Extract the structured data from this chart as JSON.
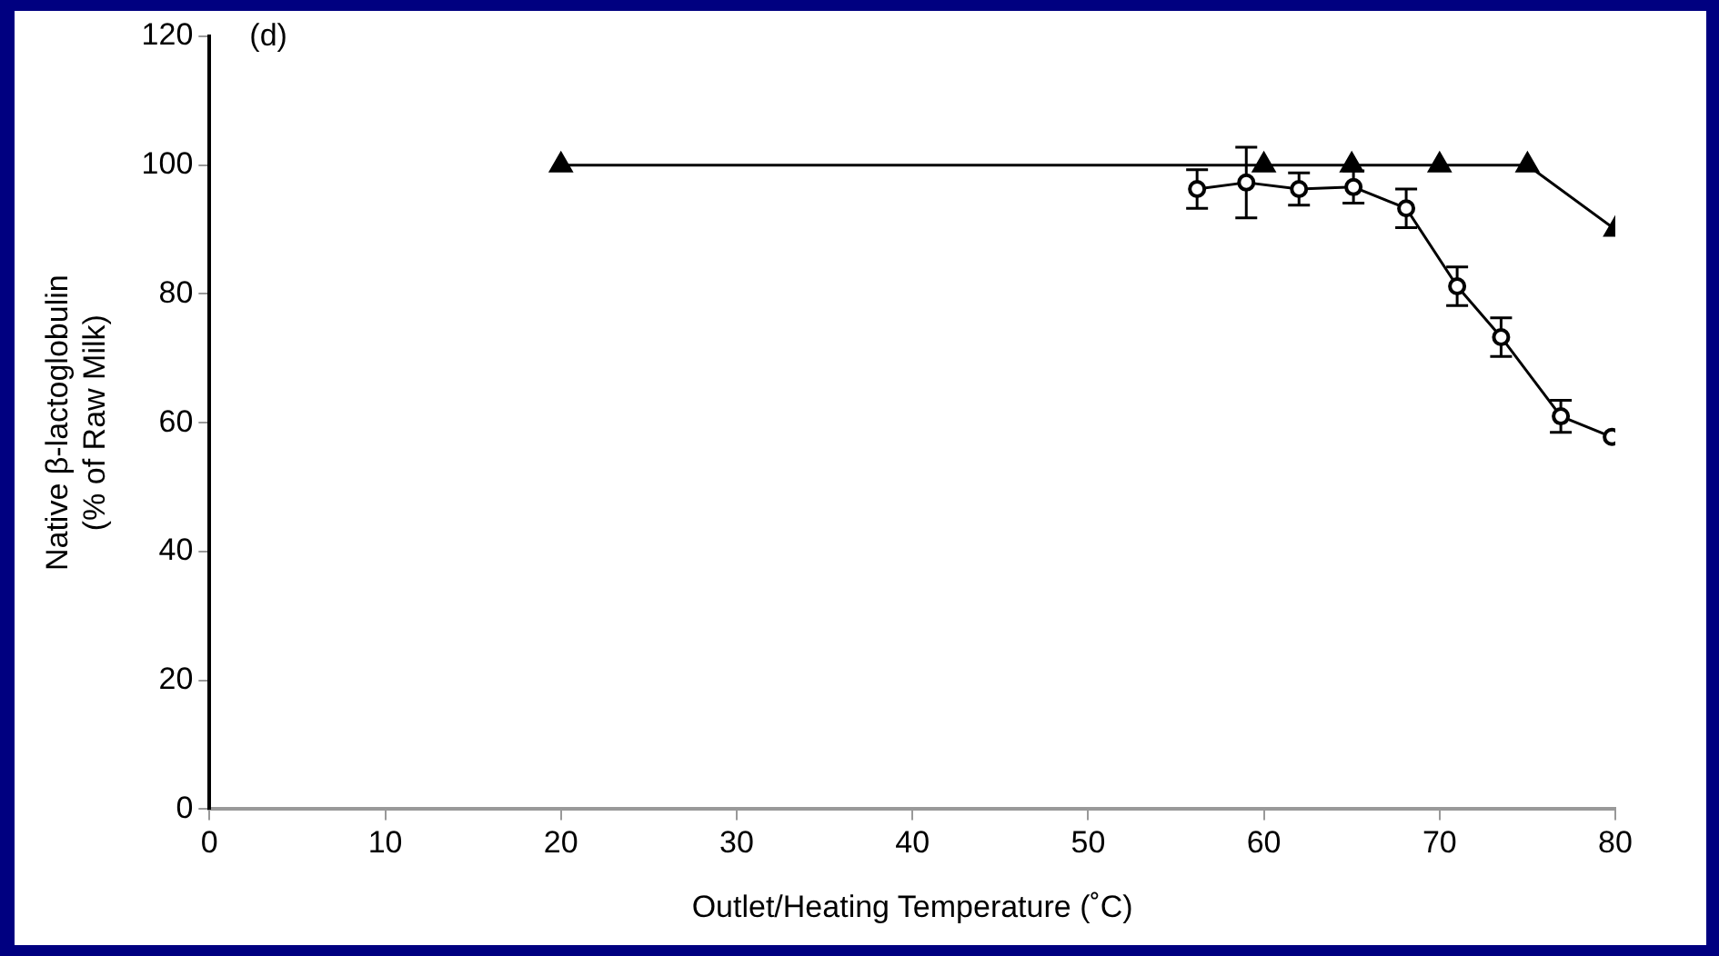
{
  "chart_data": {
    "type": "line",
    "xlabel": "Outlet/Heating Temperature (˚C)",
    "ylabel": "Native β-lactoglobulin\n(% of Raw Milk)",
    "annotations": [
      "(d)"
    ],
    "xlim": [
      0,
      80
    ],
    "xticks": [
      0,
      10,
      20,
      30,
      40,
      50,
      60,
      70,
      80
    ],
    "ylim": [
      0,
      120
    ],
    "yticks": [
      0,
      20,
      40,
      60,
      80,
      100,
      120
    ],
    "grid": false,
    "legend": false,
    "line_style": "solid",
    "series": [
      {
        "color": "#000000",
        "marker": "triangle",
        "x": [
          20,
          60,
          65,
          70,
          75,
          80
        ],
        "values": [
          100,
          100,
          100,
          100,
          100,
          90
        ]
      },
      {
        "color": "#000000",
        "marker": "circle",
        "x": [
          56.2,
          59.0,
          62.0,
          65.1,
          68.1,
          71.0,
          73.5,
          76.9,
          79.8
        ],
        "values": [
          96.3,
          97.3,
          96.3,
          96.6,
          93.3,
          81.2,
          73.3,
          61.0,
          57.8
        ],
        "errors": [
          3,
          5.5,
          2.5,
          2.5,
          3,
          3,
          3,
          2.5,
          null
        ]
      }
    ]
  }
}
